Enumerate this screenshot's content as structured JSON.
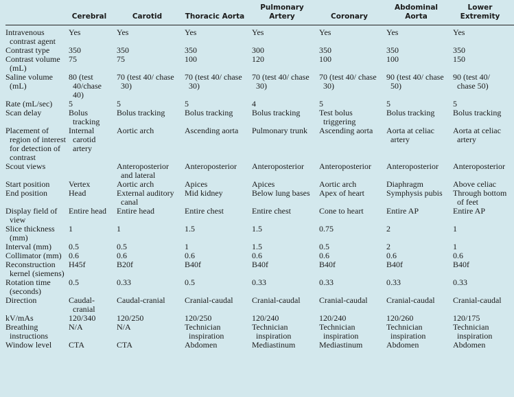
{
  "table": {
    "headers": [
      "",
      "Cerebral",
      "Carotid",
      "Thoracic Aorta",
      "Pulmonary Artery",
      "Coronary",
      "Abdominal Aorta",
      "Lower Extremity"
    ],
    "rows": [
      [
        "Intravenous contrast agent",
        "Yes",
        "Yes",
        "Yes",
        "Yes",
        "Yes",
        "Yes",
        "Yes"
      ],
      [
        "Contrast type",
        "350",
        "350",
        "350",
        "300",
        "350",
        "350",
        "350"
      ],
      [
        "Contrast volume (mL)",
        "75",
        "75",
        "100",
        "120",
        "100",
        "100",
        "150"
      ],
      [
        "Saline volume (mL)",
        "80 (test 40/chase 40)",
        "70 (test 40/ chase 30)",
        "70 (test 40/ chase 30)",
        "70 (test 40/ chase 30)",
        "70 (test 40/ chase 30)",
        "90 (test 40/ chase 50)",
        "90 (test 40/ chase 50)"
      ],
      [
        "Rate (mL/sec)",
        "5",
        "5",
        "5",
        "4",
        "5",
        "5",
        "5"
      ],
      [
        "Scan delay",
        "Bolus tracking",
        "Bolus tracking",
        "Bolus tracking",
        "Bolus tracking",
        "Test bolus triggering",
        "Bolus tracking",
        "Bolus tracking"
      ],
      [
        "Placement of region of interest for detection of contrast",
        "Internal carotid artery",
        "Aortic arch",
        "Ascending aorta",
        "Pulmonary trunk",
        "Ascending aorta",
        "Aorta at celiac artery",
        "Aorta at celiac artery"
      ],
      [
        "Scout views",
        "",
        "Anteroposterior and lateral",
        "Anteroposterior",
        "Anteroposterior",
        "Anteroposterior",
        "Anteroposterior",
        "Anteroposterior"
      ],
      [
        "Start position",
        "Vertex",
        "Aortic arch",
        "Apices",
        "Apices",
        "Aortic arch",
        "Diaphragm",
        "Above celiac"
      ],
      [
        "End position",
        "Head",
        "External auditory canal",
        "Mid kidney",
        "Below lung bases",
        "Apex of heart",
        "Symphysis pubis",
        "Through bottom of feet"
      ],
      [
        "Display field of view",
        "Entire head",
        "Entire head",
        "Entire chest",
        "Entire chest",
        "Cone to heart",
        "Entire AP",
        "Entire AP"
      ],
      [
        "Slice thickness (mm)",
        "1",
        "1",
        "1.5",
        "1.5",
        "0.75",
        "2",
        "1"
      ],
      [
        "Interval (mm)",
        "0.5",
        "0.5",
        "1",
        "1.5",
        "0.5",
        "2",
        "1"
      ],
      [
        "Collimator (mm)",
        "0.6",
        "0.6",
        "0.6",
        "0.6",
        "0.6",
        "0.6",
        "0.6"
      ],
      [
        "Reconstruction kernel (siemens)",
        "H45f",
        "B20f",
        "B40f",
        "B40f",
        "B40f",
        "B40f",
        "B40f"
      ],
      [
        "Rotation time (seconds)",
        "0.5",
        "0.33",
        "0.5",
        "0.33",
        "0.33",
        "0.33",
        "0.33"
      ],
      [
        "Direction",
        "Caudal-cranial",
        "Caudal-cranial",
        "Cranial-caudal",
        "Cranial-caudal",
        "Cranial-caudal",
        "Cranial-caudal",
        "Cranial-caudal"
      ],
      [
        "kV/mAs",
        "120/340",
        "120/250",
        "120/250",
        "120/240",
        "120/240",
        "120/260",
        "120/175"
      ],
      [
        "Breathing instructions",
        "N/A",
        "N/A",
        "Technician inspiration",
        "Technician inspiration",
        "Technician inspiration",
        "Technician inspiration",
        "Technician inspiration"
      ],
      [
        "Window level",
        "CTA",
        "CTA",
        "Abdomen",
        "Mediastinum",
        "Mediastinum",
        "Abdomen",
        "Abdomen"
      ]
    ]
  }
}
